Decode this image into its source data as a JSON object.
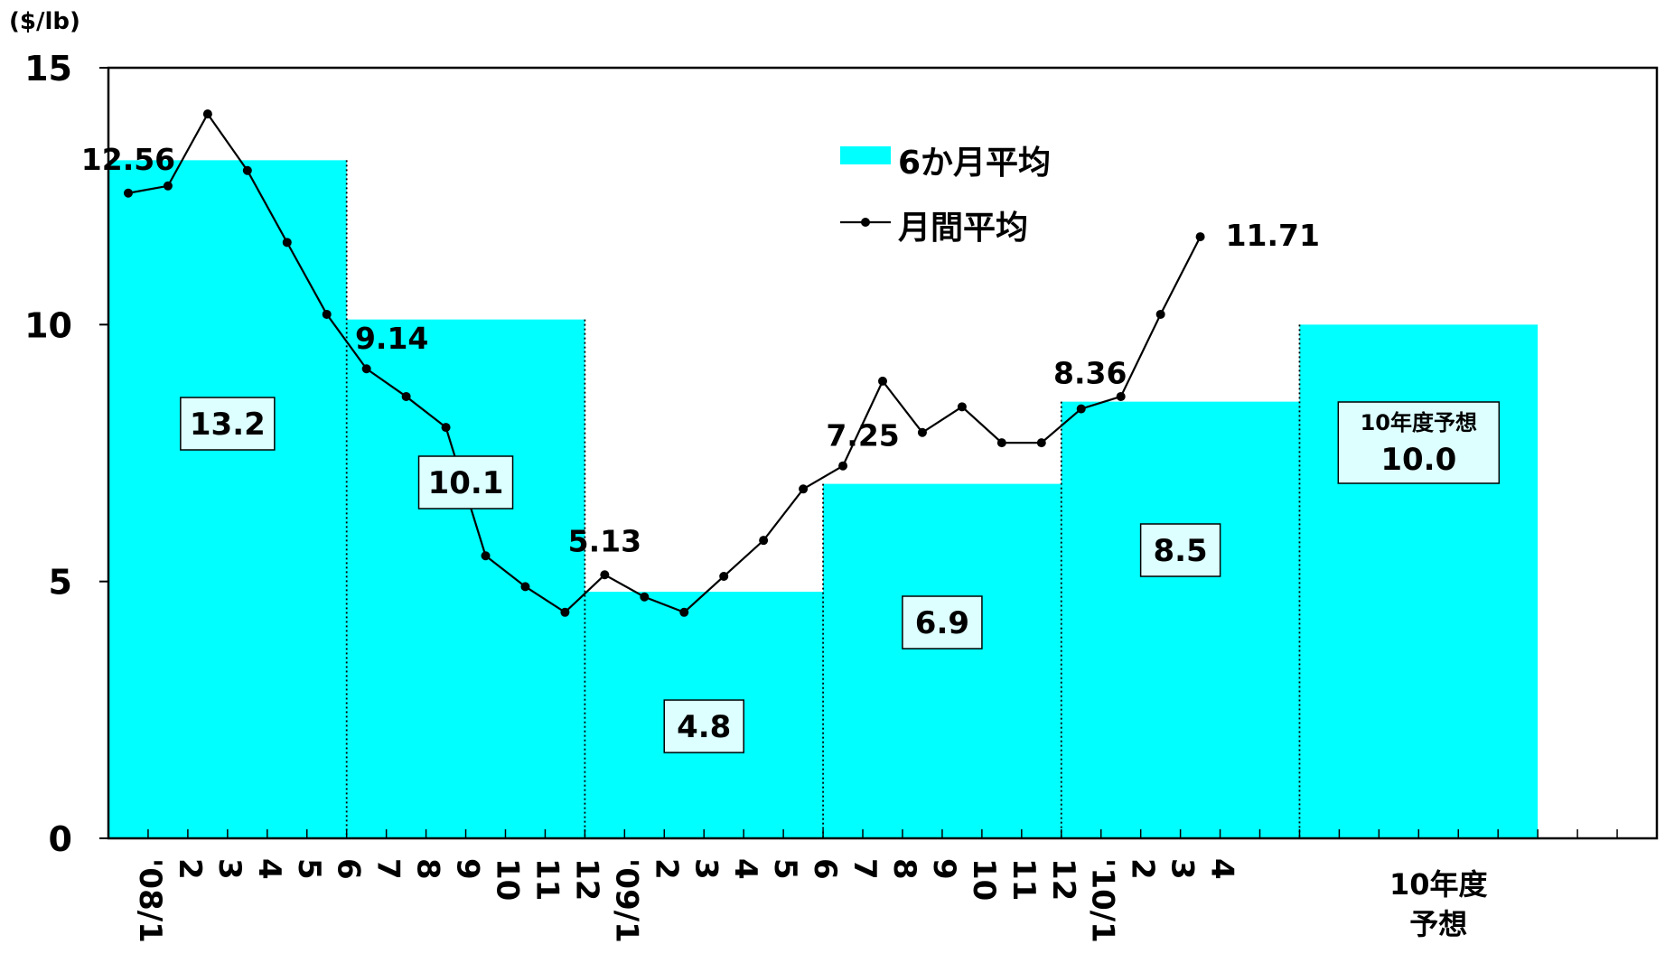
{
  "chart_data": {
    "type": "bar",
    "y_unit": "($/lb)",
    "ylim": [
      0,
      15
    ],
    "yticks": [
      0,
      5,
      10,
      15
    ],
    "grid": false,
    "legend_position": "top-center",
    "colors": {
      "bar": "#00FFFF",
      "line": "#000000"
    },
    "x_tick_labels": [
      "'08/1",
      "2",
      "3",
      "4",
      "5",
      "6",
      "7",
      "8",
      "9",
      "10",
      "11",
      "12",
      "'09/1",
      "2",
      "3",
      "4",
      "5",
      "6",
      "7",
      "8",
      "9",
      "10",
      "11",
      "12",
      "'10/1",
      "2",
      "3",
      "4"
    ],
    "forecast_label": [
      "10年度",
      "予想"
    ],
    "series": [
      {
        "name": "6か月平均",
        "type": "bar",
        "periods": [
          {
            "start_month": 0,
            "end_month": 5,
            "value": 13.2,
            "label": "13.2"
          },
          {
            "start_month": 6,
            "end_month": 11,
            "value": 10.1,
            "label": "10.1"
          },
          {
            "start_month": 12,
            "end_month": 17,
            "value": 4.8,
            "label": "4.8"
          },
          {
            "start_month": 18,
            "end_month": 23,
            "value": 6.9,
            "label": "6.9"
          },
          {
            "start_month": 24,
            "end_month": 29,
            "value": 8.5,
            "label": "8.5"
          },
          {
            "start_month": 30,
            "end_month": 35,
            "value": 10.0,
            "label": "10.0",
            "caption": "10年度予想"
          }
        ]
      },
      {
        "name": "月間平均",
        "type": "line",
        "values": [
          12.56,
          12.7,
          14.1,
          13.0,
          11.6,
          10.2,
          9.14,
          8.6,
          8.0,
          5.5,
          4.9,
          4.4,
          5.13,
          4.7,
          4.4,
          5.1,
          5.8,
          6.8,
          7.25,
          8.9,
          7.9,
          8.4,
          7.7,
          7.7,
          8.36,
          8.6,
          10.2,
          11.71
        ],
        "labels": [
          {
            "index": 0,
            "text": "12.56"
          },
          {
            "index": 6,
            "text": "9.14"
          },
          {
            "index": 12,
            "text": "5.13"
          },
          {
            "index": 18,
            "text": "7.25"
          },
          {
            "index": 24,
            "text": "8.36"
          },
          {
            "index": 27,
            "text": "11.71"
          }
        ]
      }
    ]
  }
}
